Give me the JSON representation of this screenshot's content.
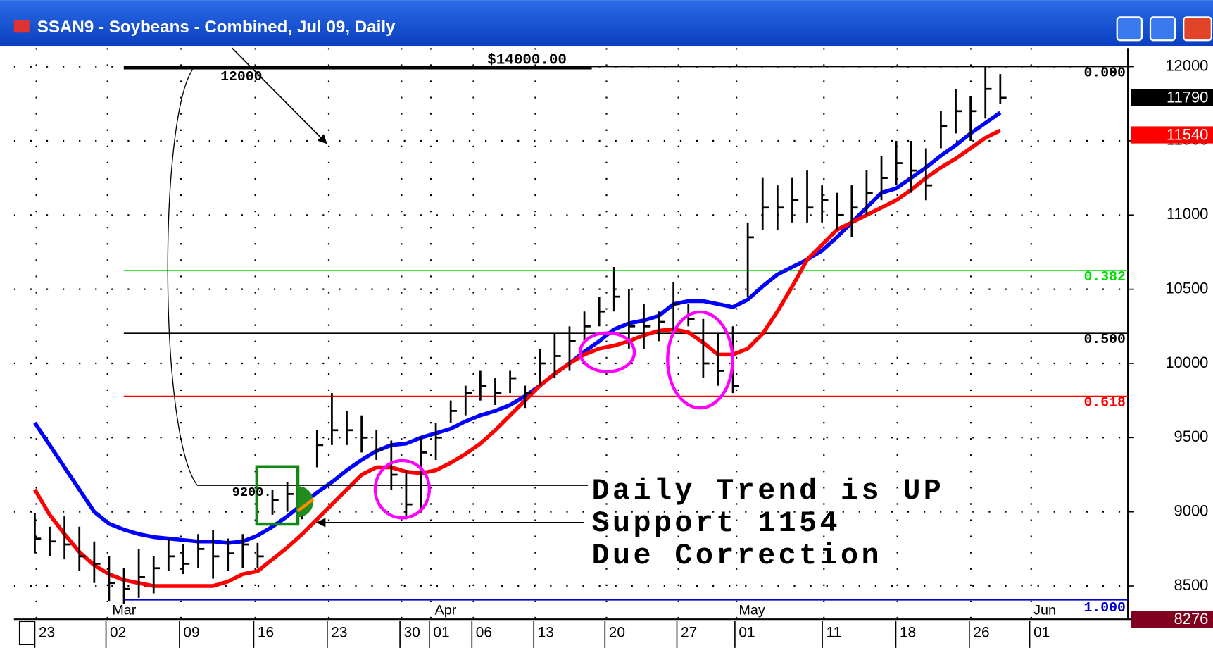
{
  "chart_data": {
    "type": "ohlc",
    "title": "SSAN9 - Soybeans - Combined, Jul 09, Daily",
    "x_labels": [
      "23",
      "02",
      "09",
      "16",
      "23",
      "30",
      "01",
      "06",
      "13",
      "20",
      "27",
      "01",
      "11",
      "18",
      "26",
      "01"
    ],
    "months": [
      "Mar",
      "Apr",
      "May",
      "Jun"
    ],
    "high": [
      8990,
      8900,
      8970,
      8900,
      8800,
      8700,
      8620,
      8750,
      8700,
      8820,
      8780,
      8850,
      8880,
      8820,
      8850,
      8790,
      9150,
      9200,
      9150,
      9550,
      9800,
      9680,
      9650,
      9550,
      9480,
      9280,
      9500,
      9600,
      9750,
      9850,
      9950,
      9900,
      9950,
      9850,
      10100,
      10200,
      10250,
      10350,
      10450,
      10650,
      10500,
      10400,
      10350,
      10550,
      10400,
      10300,
      10200,
      10250,
      10950,
      11250,
      11200,
      11250,
      11300,
      11200,
      11150,
      11200,
      11300,
      11400,
      11500,
      11500,
      11450,
      11700,
      11850,
      11800,
      12000,
      11950
    ],
    "low": [
      8720,
      8700,
      8680,
      8600,
      8520,
      8400,
      8380,
      8420,
      8450,
      8600,
      8580,
      8620,
      8550,
      8600,
      8620,
      8620,
      8980,
      9000,
      8950,
      9300,
      9450,
      9450,
      9400,
      9350,
      9150,
      8950,
      9000,
      9350,
      9600,
      9650,
      9750,
      9720,
      9800,
      9700,
      9850,
      9900,
      9950,
      10150,
      10250,
      10350,
      10100,
      10100,
      10150,
      10200,
      10250,
      9900,
      9850,
      9800,
      10450,
      10900,
      10900,
      10950,
      10950,
      10950,
      10900,
      10850,
      11000,
      11100,
      11200,
      11150,
      11100,
      11450,
      11550,
      11500,
      11650,
      11750
    ],
    "close": [
      8820,
      8800,
      8780,
      8700,
      8650,
      8520,
      8480,
      8560,
      8620,
      8700,
      8650,
      8750,
      8700,
      8720,
      8780,
      8700,
      9080,
      9120,
      9050,
      9450,
      9550,
      9550,
      9500,
      9420,
      9250,
      9050,
      9400,
      9500,
      9680,
      9800,
      9850,
      9800,
      9900,
      9800,
      10000,
      10050,
      10150,
      10250,
      10350,
      10450,
      10250,
      10250,
      10280,
      10400,
      10300,
      10000,
      9950,
      9850,
      10850,
      11050,
      11050,
      11100,
      11050,
      11100,
      11000,
      11050,
      11150,
      11250,
      11350,
      11300,
      11200,
      11600,
      11700,
      11700,
      11850,
      11790
    ],
    "bar_color": "#000000",
    "moving_averages": [
      {
        "color": "#0000ff",
        "values": [
          9600,
          9450,
          9300,
          9150,
          9000,
          8920,
          8880,
          8850,
          8830,
          8820,
          8810,
          8800,
          8800,
          8790,
          8800,
          8840,
          8900,
          8970,
          9050,
          9130,
          9200,
          9280,
          9350,
          9410,
          9450,
          9460,
          9500,
          9530,
          9560,
          9610,
          9650,
          9680,
          9720,
          9780,
          9850,
          9930,
          10000,
          10080,
          10150,
          10230,
          10270,
          10290,
          10320,
          10400,
          10420,
          10420,
          10400,
          10380,
          10430,
          10520,
          10600,
          10650,
          10700,
          10760,
          10850,
          10950,
          11050,
          11150,
          11180,
          11250,
          11320,
          11400,
          11470,
          11550,
          11620,
          11690
        ]
      },
      {
        "color": "#ff0000",
        "values": [
          9150,
          8980,
          8850,
          8730,
          8640,
          8580,
          8540,
          8520,
          8500,
          8500,
          8500,
          8500,
          8500,
          8530,
          8580,
          8600,
          8680,
          8760,
          8850,
          8950,
          9050,
          9150,
          9250,
          9300,
          9300,
          9270,
          9260,
          9280,
          9330,
          9390,
          9460,
          9550,
          9650,
          9750,
          9850,
          9930,
          10000,
          10060,
          10100,
          10120,
          10150,
          10190,
          10220,
          10230,
          10210,
          10140,
          10060,
          10060,
          10100,
          10200,
          10350,
          10520,
          10700,
          10800,
          10900,
          10950,
          11000,
          11050,
          11100,
          11170,
          11250,
          11320,
          11380,
          11450,
          11520,
          11570
        ]
      }
    ],
    "ylim": [
      8276,
      12125
    ],
    "yticks": [
      8500,
      9000,
      9500,
      10000,
      10500,
      11000,
      11500,
      12000
    ],
    "grid": true,
    "price_tags": [
      {
        "value": 11790,
        "color": "#000000"
      },
      {
        "value": 11540,
        "color": "#ff0000"
      },
      {
        "value": 8276,
        "color": "#800020"
      }
    ],
    "fib_levels": [
      {
        "label": "0.000",
        "value": 12000,
        "color": "#000000"
      },
      {
        "label": "0.382",
        "value": 10627,
        "color": "#00dd00"
      },
      {
        "label": "0.500",
        "value": 10203,
        "color": "#000000"
      },
      {
        "label": "0.618",
        "value": 9779,
        "color": "#ff0000"
      },
      {
        "label": "1.000",
        "value": 8406,
        "color": "#0000cc"
      }
    ],
    "annotations": {
      "range_top": "$14000.00",
      "high_label": "12000",
      "low_label": "9200.",
      "text": [
        "Daily Trend is UP",
        "Support 1154",
        "Due Correction"
      ]
    }
  }
}
